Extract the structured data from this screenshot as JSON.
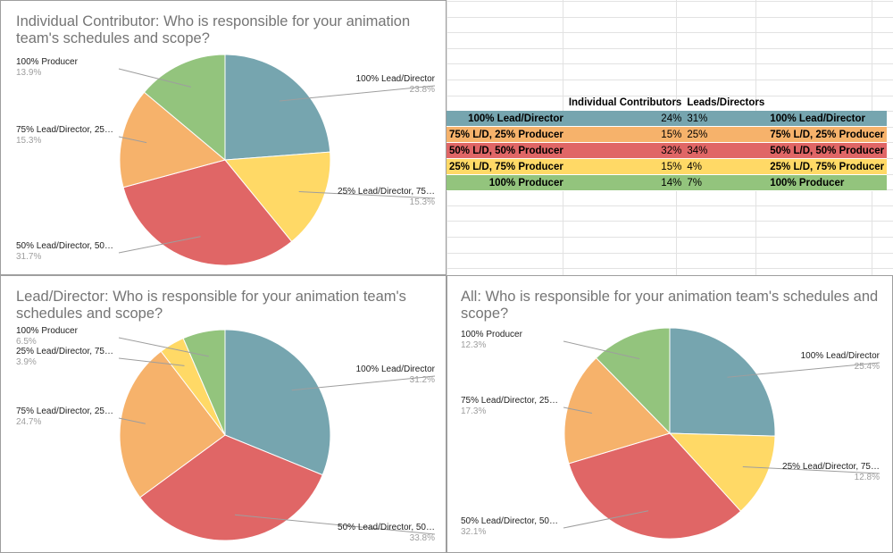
{
  "chart_data": [
    {
      "type": "pie",
      "title": "Individual Contributor: Who is responsible for your animation team's schedules and scope?",
      "slices": [
        {
          "label": "100% Lead/Director",
          "display_label": "100% Lead/Director",
          "value": 23.8,
          "pct": "23.8%",
          "color": "#76a5af"
        },
        {
          "label": "25% Lead/Director, 75% Producer",
          "display_label": "25% Lead/Director, 75…",
          "value": 15.3,
          "pct": "15.3%",
          "color": "#ffd966"
        },
        {
          "label": "50% Lead/Director, 50% Producer",
          "display_label": "50% Lead/Director, 50…",
          "value": 31.7,
          "pct": "31.7%",
          "color": "#e06666"
        },
        {
          "label": "75% Lead/Director, 25% Producer",
          "display_label": "75% Lead/Director, 25…",
          "value": 15.3,
          "pct": "15.3%",
          "color": "#f6b26b"
        },
        {
          "label": "100% Producer",
          "display_label": "100% Producer",
          "value": 13.9,
          "pct": "13.9%",
          "color": "#93c47d"
        }
      ]
    },
    {
      "type": "pie",
      "title": "Lead/Director: Who is responsible for your animation team's schedules and scope?",
      "slices": [
        {
          "label": "100% Lead/Director",
          "display_label": "100% Lead/Director",
          "value": 31.2,
          "pct": "31.2%",
          "color": "#76a5af"
        },
        {
          "label": "50% Lead/Director, 50% Producer",
          "display_label": "50% Lead/Director, 50…",
          "value": 33.8,
          "pct": "33.8%",
          "color": "#e06666"
        },
        {
          "label": "75% Lead/Director, 25% Producer",
          "display_label": "75% Lead/Director, 25…",
          "value": 24.7,
          "pct": "24.7%",
          "color": "#f6b26b"
        },
        {
          "label": "25% Lead/Director, 75% Producer",
          "display_label": "25% Lead/Director, 75…",
          "value": 3.9,
          "pct": "3.9%",
          "color": "#ffd966"
        },
        {
          "label": "100% Producer",
          "display_label": "100% Producer",
          "value": 6.5,
          "pct": "6.5%",
          "color": "#93c47d"
        }
      ]
    },
    {
      "type": "pie",
      "title": "All: Who is responsible for your animation team's schedules and scope?",
      "slices": [
        {
          "label": "100% Lead/Director",
          "display_label": "100% Lead/Director",
          "value": 25.4,
          "pct": "25.4%",
          "color": "#76a5af"
        },
        {
          "label": "25% Lead/Director, 75% Producer",
          "display_label": "25% Lead/Director, 75…",
          "value": 12.8,
          "pct": "12.8%",
          "color": "#ffd966"
        },
        {
          "label": "50% Lead/Director, 50% Producer",
          "display_label": "50% Lead/Director, 50…",
          "value": 32.1,
          "pct": "32.1%",
          "color": "#e06666"
        },
        {
          "label": "75% Lead/Director, 25% Producer",
          "display_label": "75% Lead/Director, 25…",
          "value": 17.3,
          "pct": "17.3%",
          "color": "#f6b26b"
        },
        {
          "label": "100% Producer",
          "display_label": "100% Producer",
          "value": 12.3,
          "pct": "12.3%",
          "color": "#93c47d"
        }
      ]
    }
  ],
  "sheet": {
    "headers": [
      "",
      "Individual Contributors",
      "Leads/Directors",
      ""
    ],
    "rows": [
      {
        "label": "100% Lead/Director",
        "ic": "24%",
        "ld": "31%",
        "label2": "100% Lead/Director",
        "color": "#76a5af"
      },
      {
        "label": "75% L/D, 25% Producer",
        "ic": "15%",
        "ld": "25%",
        "label2": "75% L/D, 25% Producer",
        "color": "#f6b26b"
      },
      {
        "label": "50% L/D, 50% Producer",
        "ic": "32%",
        "ld": "34%",
        "label2": "50% L/D, 50% Producer",
        "color": "#e06666"
      },
      {
        "label": "25% L/D, 75% Producer",
        "ic": "15%",
        "ld": "4%",
        "label2": "25% L/D, 75% Producer",
        "color": "#ffd966"
      },
      {
        "label": "100% Producer",
        "ic": "14%",
        "ld": "7%",
        "label2": "100% Producer",
        "color": "#93c47d"
      }
    ]
  }
}
